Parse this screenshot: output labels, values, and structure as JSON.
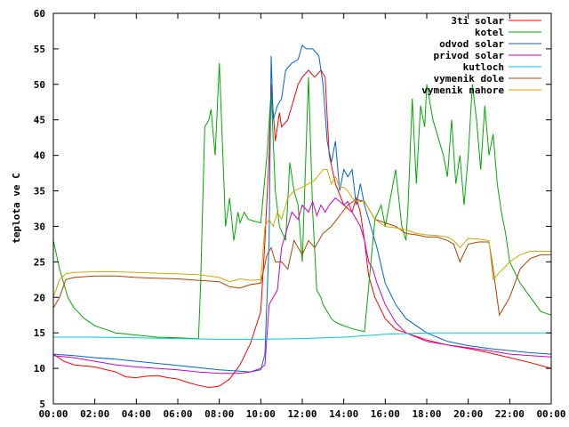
{
  "chart_data": {
    "type": "line",
    "xlabel": "",
    "ylabel": "teplota ve C",
    "xlim": [
      0,
      24
    ],
    "ylim": [
      5,
      60
    ],
    "xticks": [
      "00:00",
      "02:00",
      "04:00",
      "06:00",
      "08:00",
      "10:00",
      "12:00",
      "14:00",
      "16:00",
      "18:00",
      "20:00",
      "22:00",
      "00:00"
    ],
    "yticks": [
      "5",
      "10",
      "15",
      "20",
      "25",
      "30",
      "35",
      "40",
      "45",
      "50",
      "55",
      "60"
    ],
    "grid": false,
    "legend_position": "top-right",
    "series": [
      {
        "name": "3ti solar",
        "color": "#ff0000",
        "x": [
          0,
          0.5,
          1,
          2,
          3,
          3.5,
          4,
          4.5,
          5,
          5.5,
          6,
          6.5,
          7,
          7.5,
          8,
          8.5,
          9,
          9.5,
          10,
          10.2,
          10.4,
          10.5,
          10.7,
          10.9,
          11,
          11.3,
          11.6,
          11.8,
          12,
          12.3,
          12.6,
          12.9,
          13.1,
          13.3,
          13.6,
          14,
          14.4,
          14.6,
          14.8,
          15,
          15.2,
          15.5,
          16,
          16.5,
          17,
          18,
          19,
          20,
          21,
          22,
          23,
          24
        ],
        "y": [
          12,
          11,
          10.5,
          10.2,
          9.5,
          8.8,
          8.7,
          8.9,
          9,
          8.7,
          8.5,
          8,
          7.6,
          7.3,
          7.5,
          8.5,
          10.5,
          13.5,
          18,
          28,
          40,
          50,
          42,
          46,
          44,
          45,
          48,
          50,
          51,
          52,
          51,
          52,
          51,
          40,
          36,
          33,
          32,
          34,
          32,
          28,
          23,
          20,
          17,
          15.5,
          15,
          14,
          13.3,
          12.8,
          12.2,
          11.5,
          10.8,
          10
        ]
      },
      {
        "name": "kotel",
        "color": "#00aa00",
        "x": [
          0,
          0.3,
          0.7,
          1,
          1.5,
          2,
          3,
          4,
          5,
          6,
          6.8,
          7,
          7.1,
          7.3,
          7.5,
          7.6,
          7.8,
          8,
          8.2,
          8.3,
          8.5,
          8.7,
          8.9,
          9,
          9.2,
          9.4,
          9.6,
          10,
          10.3,
          10.5,
          10.7,
          10.9,
          11.2,
          11.4,
          11.6,
          11.8,
          12,
          12.3,
          12.5,
          12.7,
          12.9,
          13,
          13.2,
          13.4,
          13.6,
          14,
          14.5,
          15,
          15.5,
          15.8,
          16,
          16.5,
          16.8,
          17,
          17.1,
          17.3,
          17.5,
          17.7,
          17.9,
          18,
          18.3,
          18.6,
          18.8,
          19,
          19.2,
          19.4,
          19.6,
          19.8,
          20,
          20.2,
          20.4,
          20.6,
          20.8,
          21,
          21.2,
          21.4,
          21.6,
          21.8,
          22,
          22.5,
          23,
          23.5,
          24
        ],
        "y": [
          28,
          24,
          20,
          18.5,
          17,
          16,
          15,
          14.7,
          14.4,
          14.3,
          14.2,
          14.2,
          22,
          44,
          45,
          46.5,
          40,
          53,
          38,
          30,
          34,
          28,
          32,
          30.5,
          32,
          31,
          30.8,
          30.5,
          40,
          49,
          35,
          30,
          28,
          39,
          35,
          33,
          25,
          51,
          32,
          21,
          20,
          19,
          18,
          17,
          16.5,
          16,
          15.5,
          15.2,
          31,
          33,
          30,
          38,
          30,
          28,
          33,
          48,
          36,
          47,
          44,
          50,
          45,
          42,
          40,
          37,
          45,
          36,
          40,
          33,
          40,
          50,
          45,
          38,
          47,
          40,
          43,
          36,
          32,
          29,
          25,
          22,
          20,
          18,
          17.5
        ]
      },
      {
        "name": "odvod solar",
        "color": "#0066cc",
        "x": [
          0,
          1,
          2,
          3,
          4,
          5,
          6,
          7,
          8,
          9,
          9.5,
          10,
          10.2,
          10.4,
          10.5,
          10.6,
          10.8,
          11,
          11.2,
          11.5,
          11.8,
          12,
          12.2,
          12.5,
          12.8,
          13,
          13.2,
          13.4,
          13.6,
          13.8,
          14,
          14.2,
          14.4,
          14.6,
          14.8,
          15,
          15.3,
          15.6,
          16,
          16.5,
          17,
          18,
          19,
          20,
          21,
          22,
          23,
          24
        ],
        "y": [
          12,
          11.8,
          11.5,
          11.3,
          11,
          10.7,
          10.4,
          10.1,
          9.8,
          9.6,
          9.5,
          9.8,
          12,
          28,
          54,
          45,
          47,
          48,
          52,
          53,
          53.5,
          55.5,
          55,
          55,
          54,
          50,
          42,
          39,
          42,
          35,
          38,
          37,
          38,
          33,
          36,
          33,
          30,
          27,
          22,
          19,
          17,
          15,
          13.8,
          13.2,
          12.8,
          12.5,
          12.2,
          12
        ]
      },
      {
        "name": "privod solar",
        "color": "#cc00cc",
        "x": [
          0,
          1,
          2,
          3,
          4,
          5,
          6,
          7,
          8,
          9,
          9.5,
          10,
          10.2,
          10.4,
          10.6,
          10.8,
          11,
          11.3,
          11.5,
          11.8,
          12,
          12.3,
          12.5,
          12.7,
          12.9,
          13.1,
          13.3,
          13.6,
          14,
          14.2,
          14.4,
          14.6,
          14.8,
          15,
          15.2,
          15.4,
          15.6,
          16,
          16.5,
          17,
          18,
          19,
          20,
          21,
          22,
          23,
          24
        ],
        "y": [
          11.8,
          11.5,
          11,
          10.5,
          10.2,
          10,
          9.8,
          9.5,
          9.3,
          9.3,
          9.5,
          10,
          10.5,
          19,
          20,
          21,
          27,
          30,
          32,
          31,
          33,
          32,
          33.5,
          31.5,
          33,
          32,
          33,
          34,
          33,
          33.5,
          32,
          31,
          30,
          28,
          25,
          24,
          22,
          19,
          16.5,
          15,
          13.8,
          13.3,
          12.9,
          12.5,
          12,
          11.8,
          11.6
        ]
      },
      {
        "name": "kutloch",
        "color": "#00cccc",
        "x": [
          0,
          2,
          4,
          6,
          8,
          10,
          12,
          14,
          16,
          18,
          20,
          22,
          24
        ],
        "y": [
          14.4,
          14.4,
          14.3,
          14.2,
          14.1,
          14.1,
          14.2,
          14.4,
          14.8,
          15,
          15,
          15,
          15
        ]
      },
      {
        "name": "vymenik dole",
        "color": "#aa4400",
        "x": [
          0,
          0.3,
          0.6,
          1,
          2,
          3,
          4,
          5,
          6,
          7,
          8,
          8.5,
          9,
          9.5,
          10,
          10.3,
          10.5,
          10.7,
          11,
          11.3,
          11.6,
          12,
          12.3,
          12.6,
          13,
          13.4,
          13.8,
          14.2,
          14.6,
          15,
          15.5,
          16,
          16.5,
          17,
          17.5,
          18,
          18.5,
          19,
          19.3,
          19.6,
          20,
          20.5,
          21,
          21.2,
          21.5,
          22,
          22.5,
          23,
          23.5,
          24
        ],
        "y": [
          18.5,
          20,
          22.5,
          22.8,
          23,
          23,
          22.8,
          22.7,
          22.6,
          22.4,
          22.2,
          21.5,
          21.3,
          21.8,
          22,
          26,
          27,
          25,
          25,
          24,
          28,
          26,
          28,
          27,
          29,
          30,
          31.5,
          33,
          33.8,
          33.5,
          31,
          30.5,
          30,
          29,
          28.8,
          28.5,
          28.5,
          28,
          27.5,
          25,
          27.5,
          27.8,
          27.8,
          24,
          17.5,
          20,
          24,
          25.5,
          26,
          26
        ]
      },
      {
        "name": "vymenik nahore",
        "color": "#ccaa00",
        "x": [
          0,
          0.3,
          0.6,
          1,
          2,
          3,
          4,
          5,
          6,
          7,
          8,
          8.5,
          9,
          9.5,
          10,
          10.2,
          10.4,
          10.6,
          10.8,
          11,
          11.3,
          11.6,
          12,
          12.3,
          12.6,
          13,
          13.2,
          13.4,
          13.6,
          13.8,
          14,
          14.2,
          14.4,
          14.6,
          15,
          15.5,
          16,
          16.5,
          17,
          17.5,
          18,
          18.5,
          19,
          19.3,
          19.6,
          20,
          20.5,
          21,
          21.2,
          21.5,
          22,
          22.5,
          23,
          23.5,
          24
        ],
        "y": [
          20,
          22.5,
          23.3,
          23.5,
          23.6,
          23.6,
          23.5,
          23.4,
          23.3,
          23.2,
          22.8,
          22.2,
          22.6,
          22.4,
          22.5,
          30,
          31,
          30,
          32,
          31,
          34,
          35,
          35.5,
          36,
          36.5,
          38,
          38,
          36,
          37,
          35.5,
          35.5,
          35,
          34,
          33.5,
          33.5,
          31,
          30,
          29.8,
          29.5,
          29,
          28.8,
          28.7,
          28.5,
          28,
          27,
          28.3,
          28.2,
          28,
          22.5,
          23.5,
          25,
          26,
          26.5,
          26.5,
          26.5
        ]
      }
    ]
  }
}
